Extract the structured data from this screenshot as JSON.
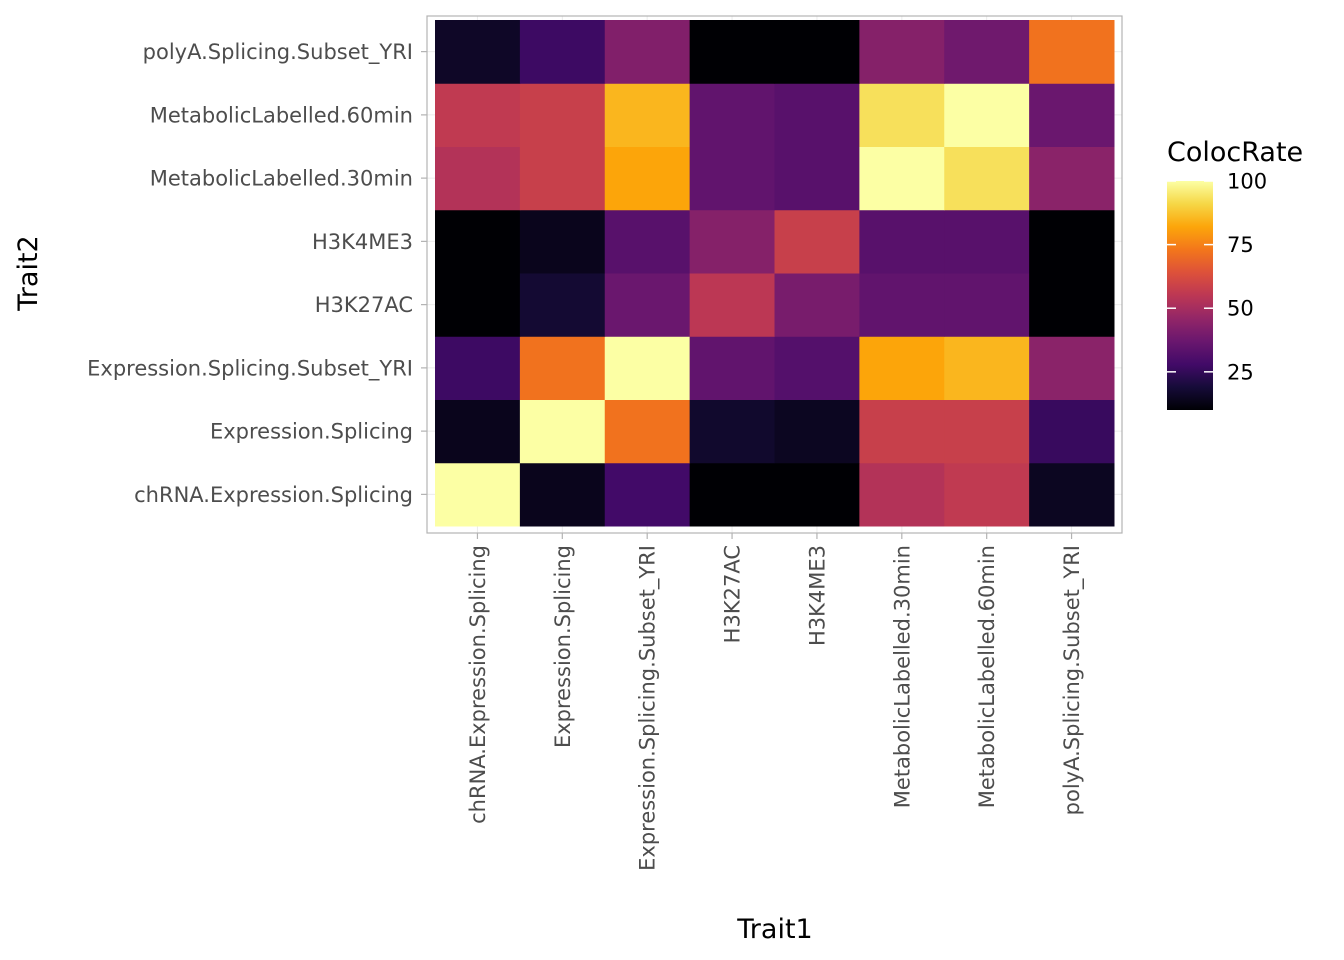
{
  "chart_data": {
    "type": "heatmap",
    "xlabel": "Trait1",
    "ylabel": "Trait2",
    "x_categories": [
      "chRNA.Expression.Splicing",
      "Expression.Splicing",
      "Expression.Splicing.Subset_YRI",
      "H3K27AC",
      "H3K4ME3",
      "MetabolicLabelled.30min",
      "MetabolicLabelled.60min",
      "polyA.Splicing.Subset_YRI"
    ],
    "y_categories": [
      "chRNA.Expression.Splicing",
      "Expression.Splicing",
      "Expression.Splicing.Subset_YRI",
      "H3K27AC",
      "H3K4ME3",
      "MetabolicLabelled.30min",
      "MetabolicLabelled.60min",
      "polyA.Splicing.Subset_YRI"
    ],
    "values": [
      [
        100,
        14,
        28,
        7,
        8,
        53,
        56,
        15
      ],
      [
        14,
        100,
        72,
        17,
        15,
        58,
        58,
        26
      ],
      [
        27,
        72,
        100,
        35,
        32,
        82,
        85,
        44
      ],
      [
        7,
        18,
        37,
        55,
        40,
        35,
        35,
        7
      ],
      [
        7,
        14,
        33,
        43,
        58,
        33,
        33,
        8
      ],
      [
        53,
        58,
        82,
        35,
        33,
        100,
        93,
        44
      ],
      [
        56,
        58,
        85,
        35,
        33,
        93,
        100,
        37
      ],
      [
        16,
        27,
        42,
        7,
        8,
        43,
        38,
        72
      ]
    ],
    "colorscale": "inferno",
    "legend": {
      "title": "ColocRate",
      "ticks": [
        25,
        50,
        75,
        100
      ],
      "range": [
        10,
        100
      ],
      "placement": "right"
    },
    "grid": true,
    "colors": {
      "grid": "#ebebeb",
      "panel_border": "#b3b3b3",
      "tick": "#b3b3b3"
    }
  }
}
